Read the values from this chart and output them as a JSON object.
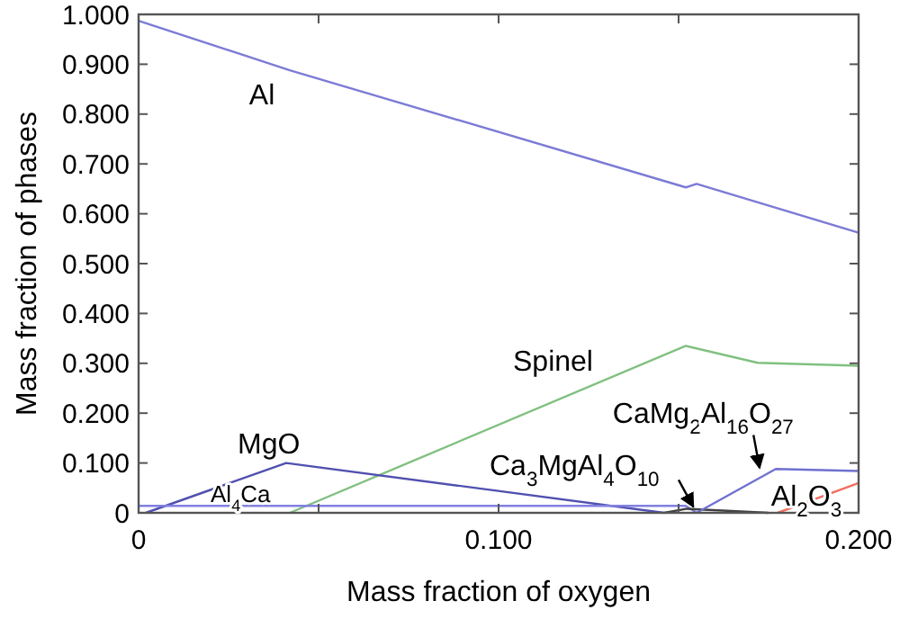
{
  "chart_data": {
    "type": "line",
    "xlabel": "Mass fraction of oxygen",
    "ylabel": "Mass fraction of phases",
    "xlim": [
      0,
      0.2
    ],
    "ylim": [
      0,
      1
    ],
    "xticks": [
      0,
      {
        "value": 0.05,
        "label": null
      },
      {
        "value": 0.1,
        "label": "0.100"
      },
      {
        "value": 0.15,
        "label": null
      },
      {
        "value": 0.2,
        "label": "0.200"
      }
    ],
    "yticks": [
      0,
      {
        "value": 0.1,
        "label": "0.100"
      },
      {
        "value": 0.2,
        "label": "0.200"
      },
      {
        "value": 0.3,
        "label": "0.300"
      },
      {
        "value": 0.4,
        "label": "0.400"
      },
      {
        "value": 0.5,
        "label": "0.500"
      },
      {
        "value": 0.6,
        "label": "0.600"
      },
      {
        "value": 0.7,
        "label": "0.700"
      },
      {
        "value": 0.8,
        "label": "0.800"
      },
      {
        "value": 0.9,
        "label": "0.900"
      },
      {
        "value": 1,
        "label": "1.000"
      }
    ],
    "grid": false,
    "marker": "none",
    "line_style": "solid",
    "series": [
      {
        "name": "Al",
        "color": "#7b7bd6",
        "x": [
          0,
          0.042,
          0.152,
          0.155,
          0.2
        ],
        "values": [
          0.987,
          0.888,
          0.653,
          0.66,
          0.562
        ]
      },
      {
        "name": "Spinel",
        "color": "#80c080",
        "x": [
          0.042,
          0.152,
          0.172,
          0.2
        ],
        "values": [
          0,
          0.335,
          0.301,
          0.295
        ]
      },
      {
        "name": "MgO",
        "color": "#5050b0",
        "x": [
          0.002,
          0.041,
          0.146
        ],
        "values": [
          0,
          0.1,
          0
        ]
      },
      {
        "name": "Al$_{4}$Ca",
        "color": "#8080e0",
        "x": [
          0,
          0.152,
          0.155
        ],
        "values": [
          0.014,
          0.014,
          0
        ]
      },
      {
        "name": "Ca$_{3}$MgAl$_{4}$O$_{10}$",
        "color": "#404040",
        "x": [
          0.146,
          0.152,
          0.175
        ],
        "values": [
          0,
          0.008,
          0
        ]
      },
      {
        "name": "CaMg$_{2}$Al$_{16}$O$_{27}$",
        "color": "#7070d0",
        "x": [
          0.155,
          0.177,
          0.2
        ],
        "values": [
          0,
          0.088,
          0.084
        ]
      },
      {
        "name": "Al$_{2}$O$_{3}$",
        "color": "#f07060",
        "x": [
          0.1775,
          0.2
        ],
        "values": [
          0,
          0.06
        ]
      }
    ]
  }
}
